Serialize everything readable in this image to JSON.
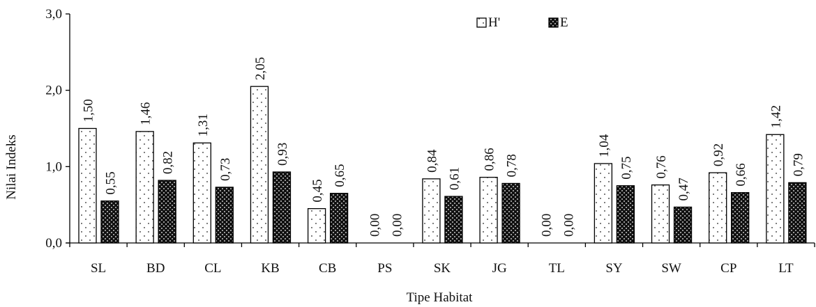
{
  "chart_data": {
    "type": "bar",
    "xlabel": "Tipe Habitat",
    "ylabel": "Nilai Indeks",
    "ylim": [
      0,
      3
    ],
    "yticks": [
      "0,0",
      "1,0",
      "2,0",
      "3,0"
    ],
    "grid": false,
    "legend_position": "top-right",
    "categories": [
      "SL",
      "BD",
      "CL",
      "KB",
      "CB",
      "PS",
      "SK",
      "JG",
      "TL",
      "SY",
      "SW",
      "CP",
      "LT"
    ],
    "series": [
      {
        "name": "H'",
        "pattern": "dotted",
        "values": [
          1.5,
          1.46,
          1.31,
          2.05,
          0.45,
          0.0,
          0.84,
          0.86,
          0.0,
          1.04,
          0.76,
          0.92,
          1.42
        ],
        "labels": [
          "1,50",
          "1,46",
          "1,31",
          "2,05",
          "0,45",
          "0,00",
          "0,84",
          "0,86",
          "0,00",
          "1,04",
          "0,76",
          "0,92",
          "1,42"
        ]
      },
      {
        "name": "E",
        "pattern": "dark-checker",
        "values": [
          0.55,
          0.82,
          0.73,
          0.93,
          0.65,
          0.0,
          0.61,
          0.78,
          0.0,
          0.75,
          0.47,
          0.66,
          0.79
        ],
        "labels": [
          "0,55",
          "0,82",
          "0,73",
          "0,93",
          "0,65",
          "0,00",
          "0,61",
          "0,78",
          "0,00",
          "0,75",
          "0,47",
          "0,66",
          "0,79"
        ]
      }
    ],
    "colors": {
      "axis": "#000000",
      "h_fill": "#ffffff",
      "e_fill": "#1a1a1a"
    }
  }
}
